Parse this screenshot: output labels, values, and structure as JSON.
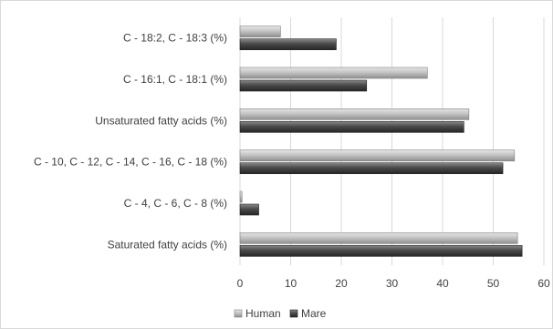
{
  "chart_data": {
    "type": "bar",
    "orientation": "horizontal",
    "categories": [
      "Saturated fatty acids (%)",
      "C - 4, C - 6, C - 8 (%)",
      "C - 10, C - 12, C - 14, C - 16, C - 18 (%)",
      "Unsaturated fatty acids (%)",
      "C - 16:1, C - 18:1 (%)",
      "C - 18:2, C - 18:3 (%)"
    ],
    "series": [
      {
        "name": "Human",
        "values": [
          54.8,
          0.4,
          54.2,
          45.2,
          37,
          8
        ],
        "color": "#bfbfbf"
      },
      {
        "name": "Mare",
        "values": [
          55.7,
          3.7,
          51.9,
          44.2,
          25,
          19
        ],
        "color": "#4d4d4d"
      }
    ],
    "xlim": [
      0,
      60
    ],
    "xticks": [
      "0",
      "10",
      "20",
      "30",
      "40",
      "50",
      "60"
    ],
    "grid": true,
    "legend": "bottom",
    "title": "",
    "xlabel": "",
    "ylabel": ""
  }
}
